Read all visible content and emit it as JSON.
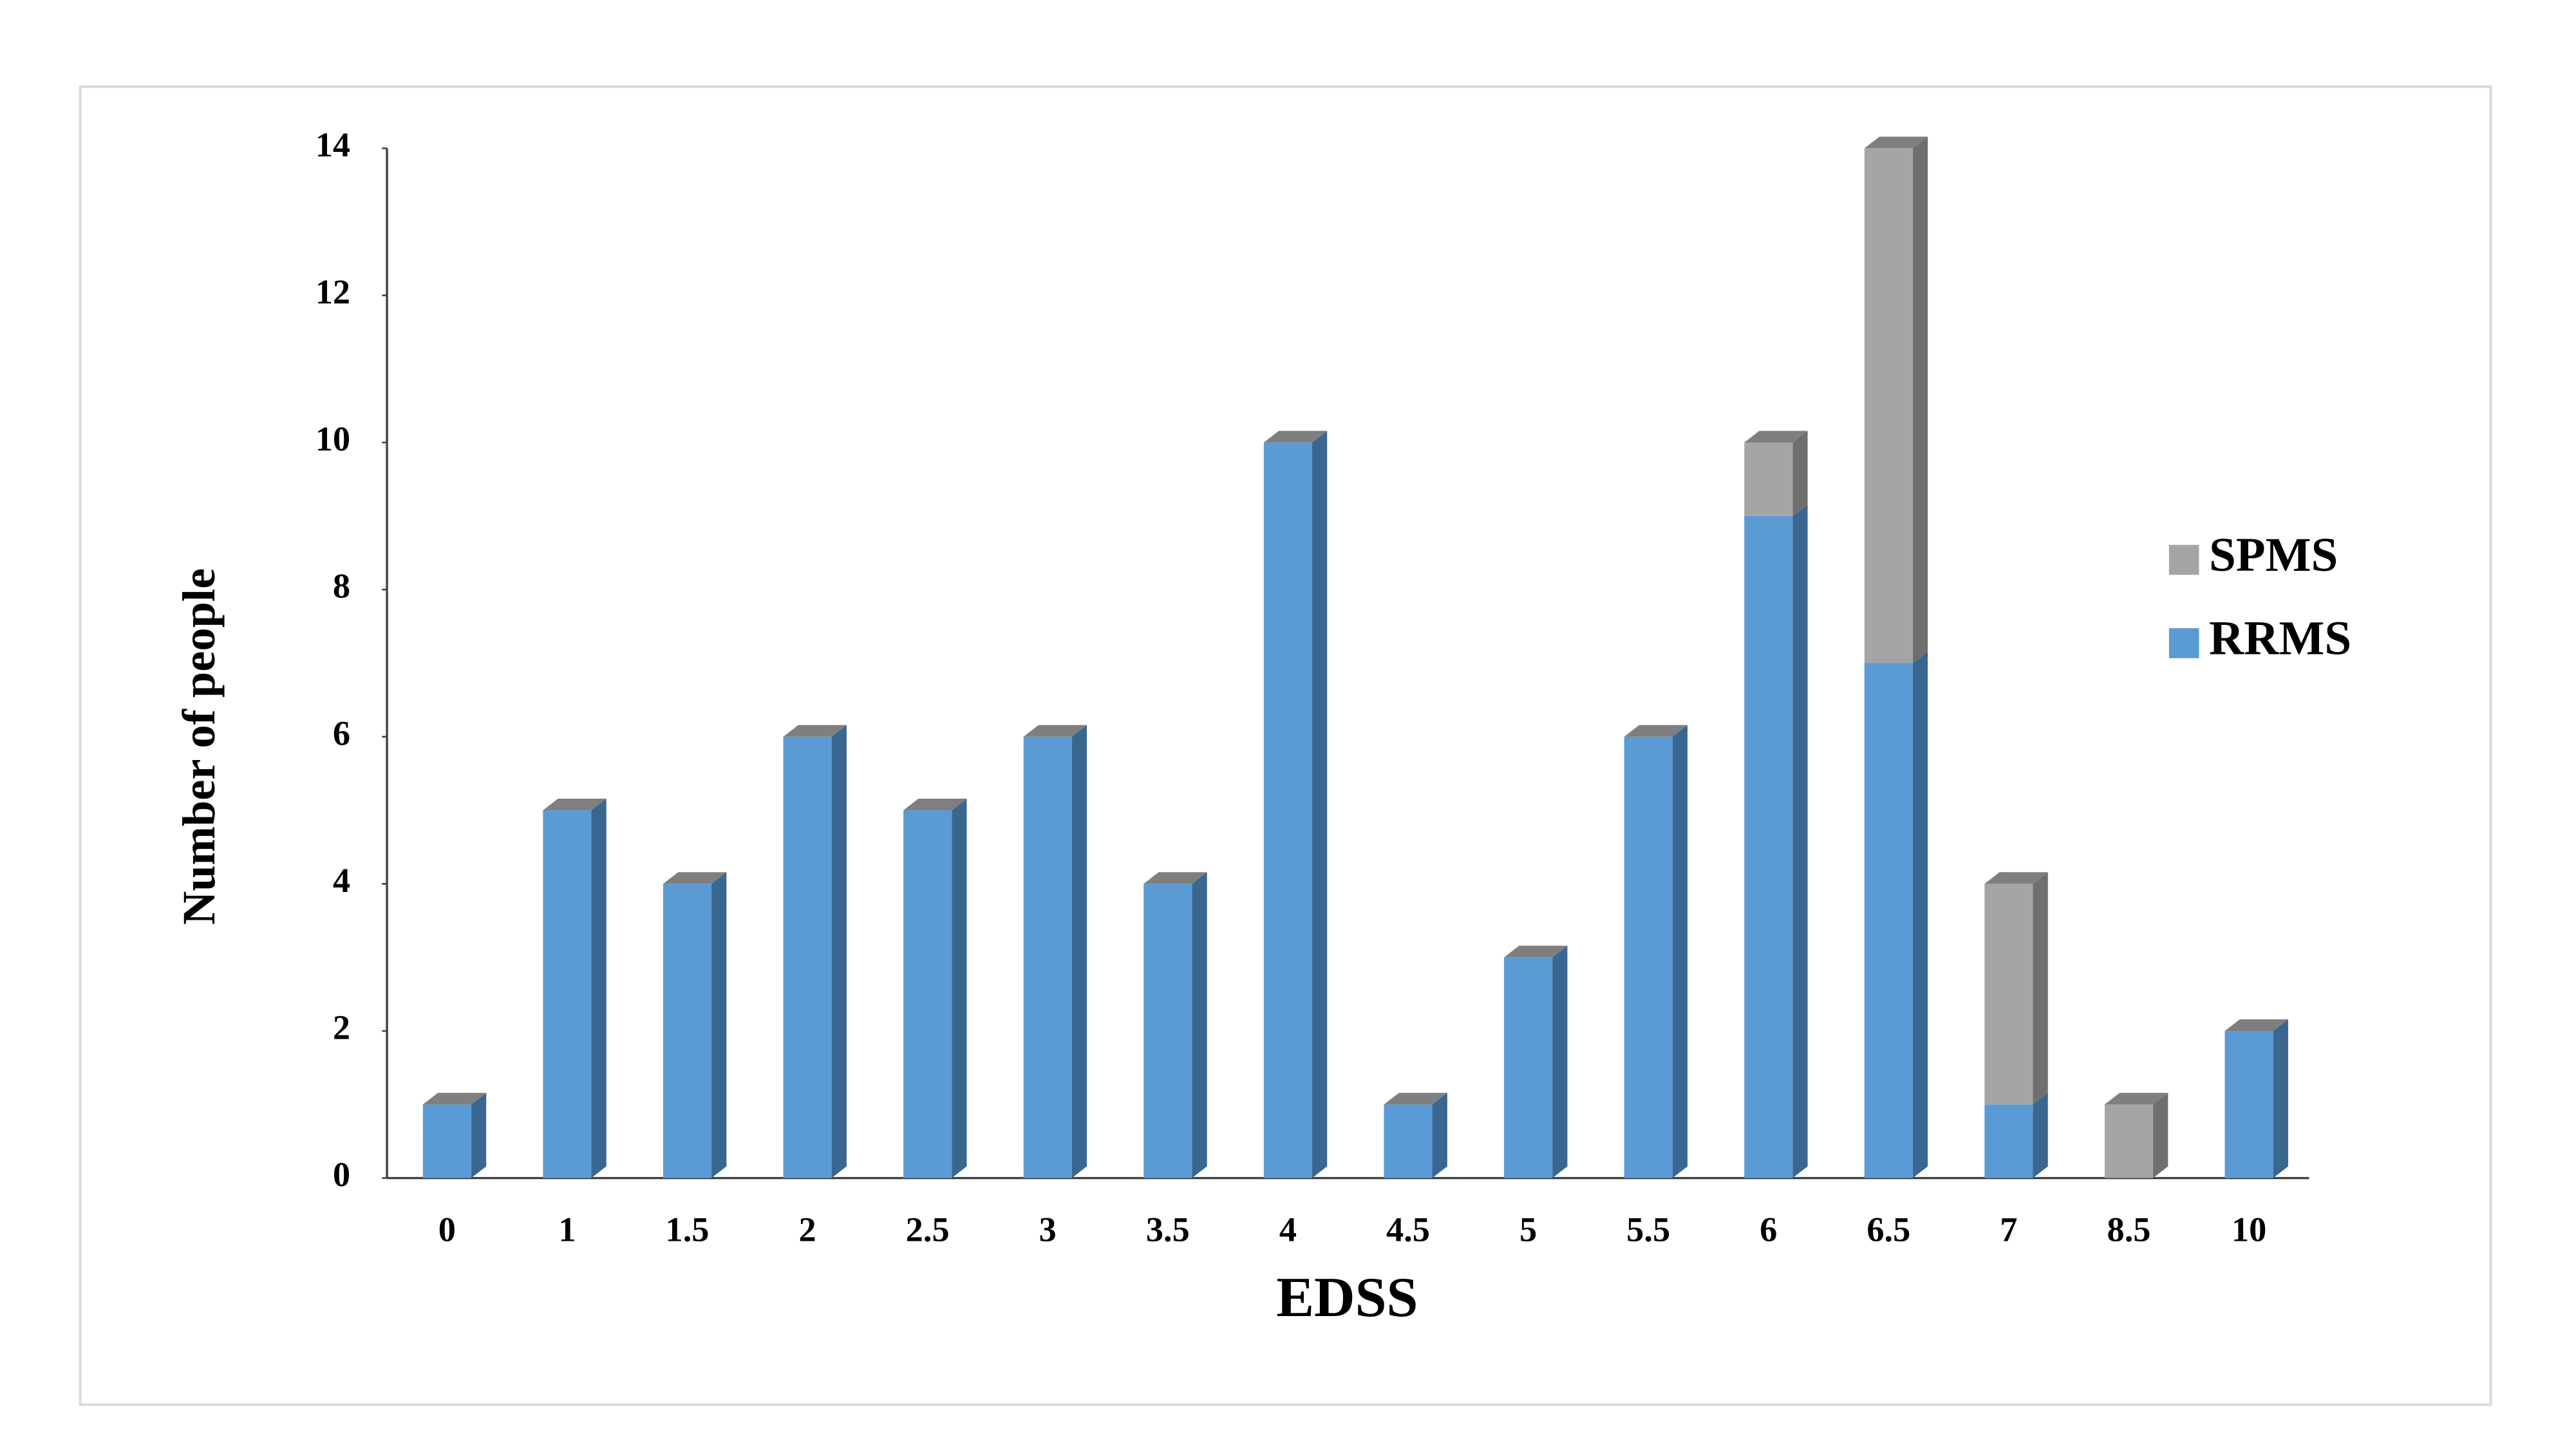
{
  "chart_data": {
    "type": "stacked_bar",
    "x_label": "EDSS",
    "y_label": "Number of people",
    "categories": [
      "0",
      "1",
      "1.5",
      "2",
      "2.5",
      "3",
      "3.5",
      "4",
      "4.5",
      "5",
      "5.5",
      "6",
      "6.5",
      "7",
      "8.5",
      "10"
    ],
    "series": [
      {
        "name": "RRMS",
        "color": "#5b9bd5",
        "side_color": "#3a6790",
        "values": [
          1,
          5,
          4,
          6,
          5,
          6,
          4,
          10,
          1,
          3,
          6,
          9,
          7,
          1,
          0,
          2
        ]
      },
      {
        "name": "SPMS",
        "color": "#a5a5a5",
        "side_color": "#6f6f6f",
        "values": [
          0,
          0,
          0,
          0,
          0,
          0,
          0,
          0,
          0,
          0,
          0,
          1,
          7,
          3,
          1,
          0
        ]
      }
    ],
    "ylim": [
      0,
      14
    ],
    "yticks": [
      0,
      2,
      4,
      6,
      8,
      10,
      12,
      14
    ],
    "grid": false,
    "legend": "right"
  }
}
